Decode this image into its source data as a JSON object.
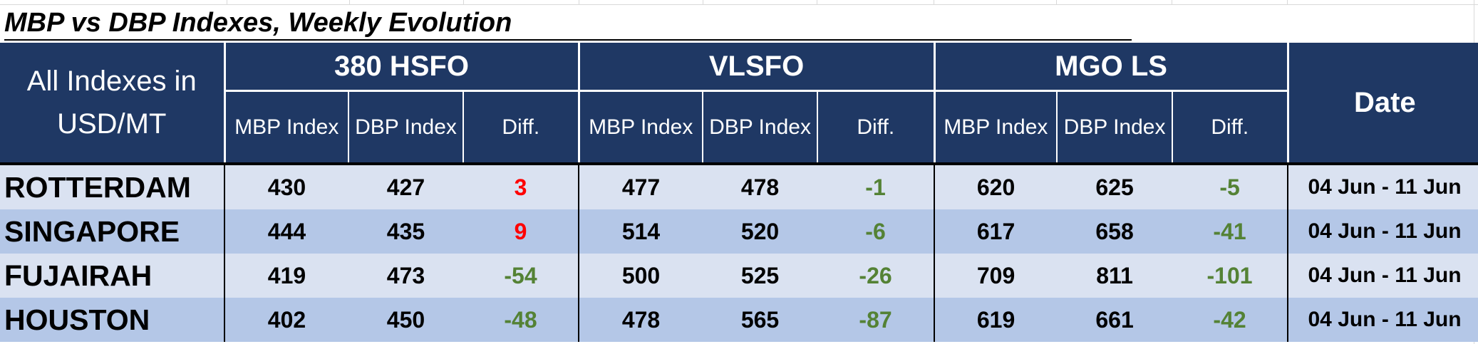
{
  "title": "MBP vs DBP Indexes, Weekly Evolution",
  "table": {
    "corner_label": "All Indexes in USD/MT",
    "groups": [
      "380 HSFO",
      "VLSFO",
      "MGO LS"
    ],
    "sub_headers": {
      "mbp": "MBP Index",
      "dbp": "DBP Index",
      "diff": "Diff."
    },
    "date_header": "Date",
    "rows": [
      {
        "city": "ROTTERDAM",
        "hsfo": {
          "mbp": "430",
          "dbp": "427",
          "diff": "3"
        },
        "vlsfo": {
          "mbp": "477",
          "dbp": "478",
          "diff": "-1"
        },
        "mgo": {
          "mbp": "620",
          "dbp": "625",
          "diff": "-5"
        },
        "date": "04 Jun - 11 Jun"
      },
      {
        "city": "SINGAPORE",
        "hsfo": {
          "mbp": "444",
          "dbp": "435",
          "diff": "9"
        },
        "vlsfo": {
          "mbp": "514",
          "dbp": "520",
          "diff": "-6"
        },
        "mgo": {
          "mbp": "617",
          "dbp": "658",
          "diff": "-41"
        },
        "date": "04 Jun - 11 Jun"
      },
      {
        "city": "FUJAIRAH",
        "hsfo": {
          "mbp": "419",
          "dbp": "473",
          "diff": "-54"
        },
        "vlsfo": {
          "mbp": "500",
          "dbp": "525",
          "diff": "-26"
        },
        "mgo": {
          "mbp": "709",
          "dbp": "811",
          "diff": "-101"
        },
        "date": "04 Jun - 11 Jun"
      },
      {
        "city": "HOUSTON",
        "hsfo": {
          "mbp": "402",
          "dbp": "450",
          "diff": "-48"
        },
        "vlsfo": {
          "mbp": "478",
          "dbp": "565",
          "diff": "-87"
        },
        "mgo": {
          "mbp": "619",
          "dbp": "661",
          "diff": "-42"
        },
        "date": "04 Jun - 11 Jun"
      }
    ]
  },
  "colors": {
    "header_bg": "#1f3864",
    "row_light": "#dae2f1",
    "row_dark": "#b4c7e7",
    "diff_positive": "#ff0000",
    "diff_negative": "#548235"
  }
}
